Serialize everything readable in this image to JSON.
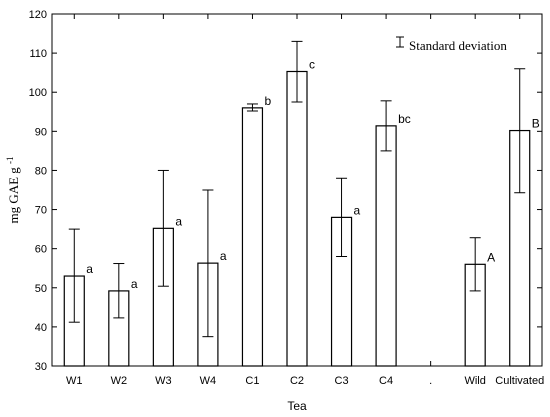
{
  "chart_data": {
    "type": "bar",
    "title": "",
    "xlabel": "Tea",
    "ylabel_main": "mg GAE g",
    "ylabel_sup": "-1",
    "ylim": [
      30,
      120
    ],
    "yticks": [
      30,
      40,
      50,
      60,
      70,
      80,
      90,
      100,
      110,
      120
    ],
    "categories": [
      "W1",
      "W2",
      "W3",
      "W4",
      "C1",
      "C2",
      "C3",
      "C4",
      ".",
      "Wild",
      "Cultivated"
    ],
    "values": [
      53,
      49.2,
      65.2,
      56.3,
      96,
      105.3,
      68,
      91.4,
      null,
      56,
      90.2
    ],
    "error_low": [
      41.2,
      42.3,
      50.4,
      37.5,
      95.2,
      97.5,
      58,
      85,
      null,
      49.2,
      74.3
    ],
    "error_high": [
      65,
      56.2,
      80,
      75,
      97,
      113,
      78,
      97.8,
      null,
      62.8,
      106
    ],
    "significance": [
      "a",
      "a",
      "a",
      "a",
      "b",
      "c",
      "a",
      "bc",
      "",
      "A",
      "B"
    ],
    "legend": {
      "label": "Standard deviation",
      "placement": "top-right"
    },
    "grid": false
  }
}
